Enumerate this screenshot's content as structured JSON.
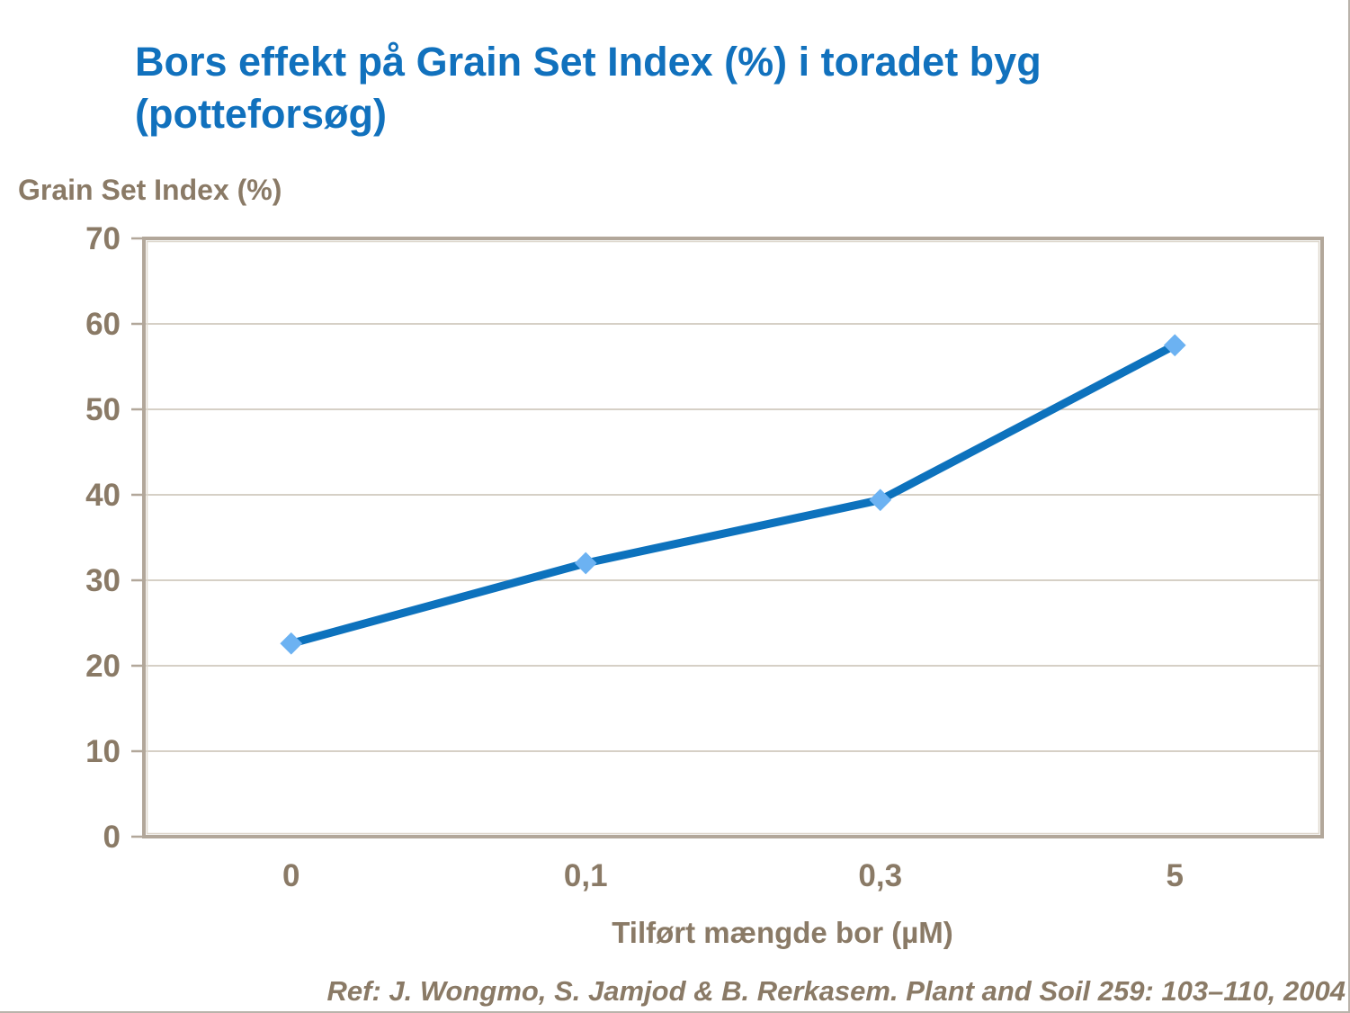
{
  "slide": {
    "title_lines": [
      "Bors effekt på Grain Set Index (%) i toradet byg",
      "(potteforsøg)"
    ],
    "reference": "Ref: J. Wongmo, S. Jamjod & B. Rerkasem. Plant and Soil 259: 103–110, 2004"
  },
  "chart_data": {
    "type": "line",
    "title": "Bors effekt på Grain Set Index (%) i toradet byg (potteforsøg)",
    "categories": [
      "0",
      "0,1",
      "0,3",
      "5"
    ],
    "series": [
      {
        "name": "Grain Set Index (%)",
        "values": [
          22.6,
          32,
          39.4,
          57.5
        ]
      }
    ],
    "xlabel": "Tilført mængde bor (µM)",
    "ylabel": "Grain Set Index (%)",
    "ylim": [
      0,
      70
    ],
    "yticks": [
      0,
      10,
      20,
      30,
      40,
      50,
      60,
      70
    ],
    "grid": true,
    "legend": false,
    "marker": "diamond",
    "colors": {
      "title": "#1171bd",
      "line": "#0d72bd",
      "marker": "#6cb2f2",
      "text": "#8a7a66",
      "axis": "#b2a79a",
      "axis_highlight": "#ded7cd",
      "grid": "#c9c0b4"
    }
  }
}
